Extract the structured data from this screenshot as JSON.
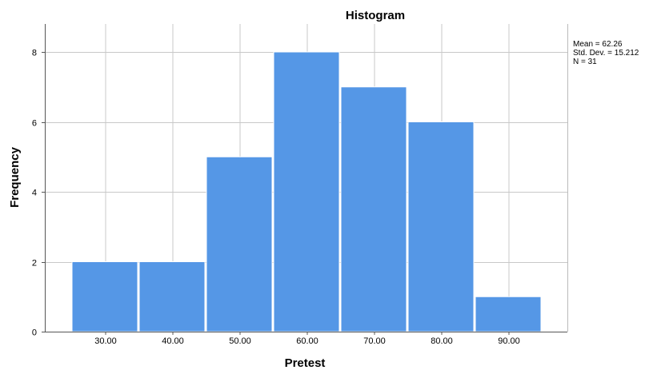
{
  "chart_data": {
    "type": "bar",
    "title": "Histogram",
    "xlabel": "Pretest",
    "ylabel": "Frequency",
    "categories": [
      "30.00",
      "40.00",
      "50.00",
      "60.00",
      "70.00",
      "80.00",
      "90.00"
    ],
    "values": [
      2,
      2,
      5,
      8,
      7,
      6,
      1
    ],
    "ylim": [
      0,
      8.8
    ],
    "yticks": [
      "0",
      "2",
      "4",
      "6",
      "8"
    ],
    "grid": true,
    "bar_color": "#5597E6",
    "grid_color": "#c8c8c8",
    "stats": {
      "mean": "Mean = 62.26",
      "std": "Std. Dev. = 15.212",
      "n": "N = 31"
    }
  }
}
